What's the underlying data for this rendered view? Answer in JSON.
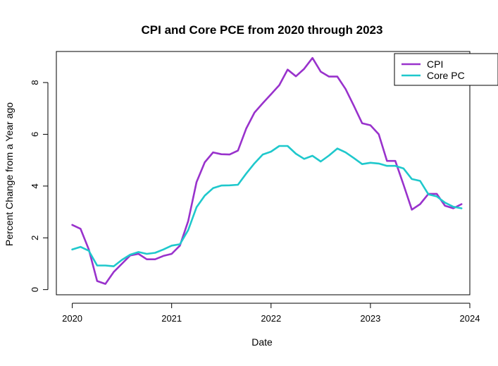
{
  "chart_data": {
    "type": "line",
    "title": "CPI and Core PCE from 2020 through 2023",
    "xlabel": "Date",
    "ylabel": "Percent Change from a Year ago",
    "xlim": [
      2019.84,
      2024.0
    ],
    "ylim": [
      -0.2,
      9.2
    ],
    "x_ticks": [
      2020,
      2021,
      2022,
      2023,
      2024
    ],
    "y_ticks": [
      0,
      2,
      4,
      6,
      8
    ],
    "legend_position": "top-right",
    "x": [
      "2020-01",
      "2020-02",
      "2020-03",
      "2020-04",
      "2020-05",
      "2020-06",
      "2020-07",
      "2020-08",
      "2020-09",
      "2020-10",
      "2020-11",
      "2020-12",
      "2021-01",
      "2021-02",
      "2021-03",
      "2021-04",
      "2021-05",
      "2021-06",
      "2021-07",
      "2021-08",
      "2021-09",
      "2021-10",
      "2021-11",
      "2021-12",
      "2022-01",
      "2022-02",
      "2022-03",
      "2022-04",
      "2022-05",
      "2022-06",
      "2022-07",
      "2022-08",
      "2022-09",
      "2022-10",
      "2022-11",
      "2022-12",
      "2023-01",
      "2023-02",
      "2023-03",
      "2023-04",
      "2023-05",
      "2023-06",
      "2023-07",
      "2023-08",
      "2023-09",
      "2023-10",
      "2023-11",
      "2023-12"
    ],
    "series": [
      {
        "name": "CPI",
        "color": "#9932CC",
        "values": [
          2.5,
          2.35,
          1.55,
          0.33,
          0.22,
          0.68,
          1.0,
          1.32,
          1.38,
          1.17,
          1.17,
          1.3,
          1.38,
          1.7,
          2.65,
          4.15,
          4.92,
          5.3,
          5.23,
          5.22,
          5.37,
          6.22,
          6.84,
          7.2,
          7.55,
          7.9,
          8.5,
          8.24,
          8.53,
          8.95,
          8.42,
          8.23,
          8.23,
          7.75,
          7.1,
          6.43,
          6.35,
          6.0,
          4.97,
          4.97,
          4.05,
          3.09,
          3.3,
          3.7,
          3.7,
          3.24,
          3.14,
          3.3
        ]
      },
      {
        "name": "Core PC",
        "color": "#1FC8CC",
        "values": [
          1.55,
          1.65,
          1.5,
          0.93,
          0.93,
          0.9,
          1.15,
          1.35,
          1.45,
          1.38,
          1.42,
          1.55,
          1.7,
          1.75,
          2.3,
          3.18,
          3.63,
          3.92,
          4.02,
          4.03,
          4.05,
          4.48,
          4.88,
          5.22,
          5.33,
          5.55,
          5.55,
          5.25,
          5.05,
          5.17,
          4.95,
          5.18,
          5.45,
          5.3,
          5.08,
          4.85,
          4.9,
          4.87,
          4.78,
          4.78,
          4.68,
          4.27,
          4.2,
          3.68,
          3.6,
          3.36,
          3.2,
          3.14
        ]
      }
    ]
  }
}
